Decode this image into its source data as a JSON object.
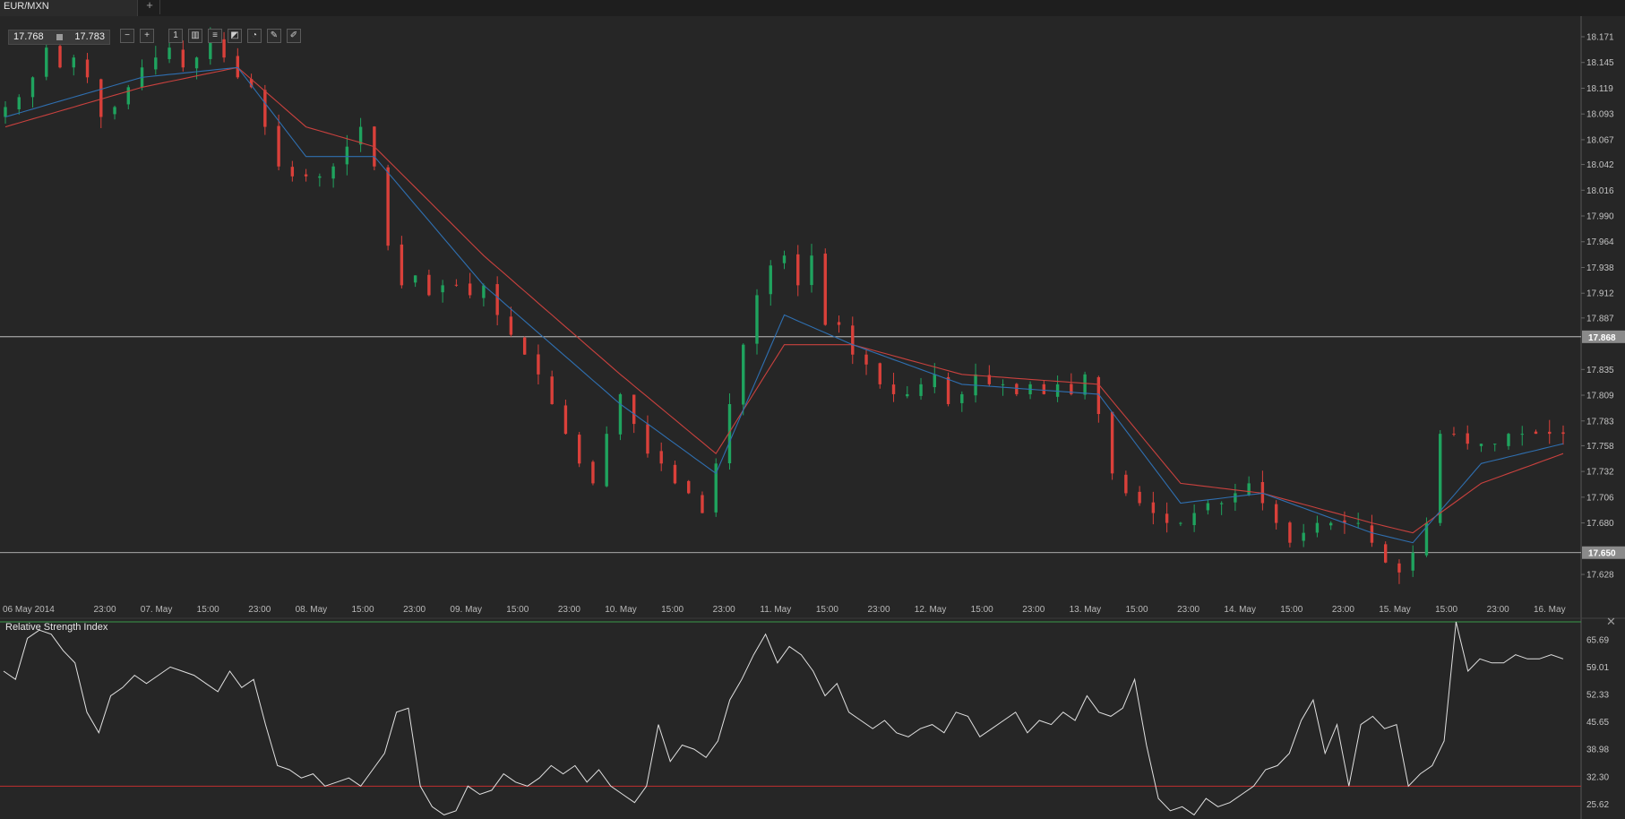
{
  "tab": {
    "title": "EUR/MXN",
    "add_label": "+"
  },
  "quote": {
    "bid": "17.768",
    "ask": "17.783"
  },
  "toolbar": {
    "buttons": [
      {
        "name": "zoom-out-icon",
        "glyph": "−"
      },
      {
        "name": "zoom-in-icon",
        "glyph": "+"
      },
      {
        "name": "timeframe-icon",
        "glyph": "1"
      },
      {
        "name": "chart-type-icon",
        "glyph": "▥"
      },
      {
        "name": "indicators-icon",
        "glyph": "≡"
      },
      {
        "name": "studies-icon",
        "glyph": "◩"
      },
      {
        "name": "objects-icon",
        "glyph": "◔"
      },
      {
        "name": "edit-icon",
        "glyph": "✎"
      },
      {
        "name": "draw-icon",
        "glyph": "✐"
      }
    ]
  },
  "rsi_panel": {
    "title": "Relative Strength Index",
    "close_label": "✕"
  },
  "colors": {
    "background": "#262626",
    "up": "#1fa35e",
    "down": "#d9403a",
    "ma_fast": "#2f6fb0",
    "ma_slow": "#c9413e",
    "rsi_line": "#e0e0e0",
    "rsi_upper": "#3a9a4a",
    "rsi_lower": "#c03030"
  },
  "chart_data": [
    {
      "type": "candlestick",
      "symbol": "EUR/MXN",
      "ylim": [
        17.6,
        18.19
      ],
      "y_ticks": [
        "18.171",
        "18.145",
        "18.119",
        "18.093",
        "18.067",
        "18.042",
        "18.016",
        "17.990",
        "17.964",
        "17.938",
        "17.912",
        "17.887",
        "17.835",
        "17.809",
        "17.783",
        "17.758",
        "17.732",
        "17.706",
        "17.680",
        "17.628"
      ],
      "x_labels": [
        "06 May 2014",
        "23:00",
        "07. May",
        "15:00",
        "23:00",
        "08. May",
        "15:00",
        "23:00",
        "09. May",
        "15:00",
        "23:00",
        "10. May",
        "15:00",
        "23:00",
        "11. May",
        "15:00",
        "23:00",
        "12. May",
        "15:00",
        "23:00",
        "13. May",
        "15:00",
        "23:00",
        "14. May",
        "15:00",
        "23:00",
        "15. May",
        "15:00",
        "23:00",
        "16. May"
      ],
      "horizontal_lines": [
        {
          "value": 17.868,
          "label": "17.868"
        },
        {
          "value": 17.65,
          "label": "17.650"
        }
      ],
      "close_path": [
        [
          0,
          18.1
        ],
        [
          1,
          18.11
        ],
        [
          2,
          18.13
        ],
        [
          3,
          18.16
        ],
        [
          4,
          18.14
        ],
        [
          5,
          18.15
        ],
        [
          6,
          18.13
        ],
        [
          7,
          18.09
        ],
        [
          8,
          18.1
        ],
        [
          9,
          18.12
        ],
        [
          10,
          18.14
        ],
        [
          11,
          18.15
        ],
        [
          12,
          18.16
        ],
        [
          13,
          18.14
        ],
        [
          14,
          18.15
        ],
        [
          15,
          18.17
        ],
        [
          16,
          18.15
        ],
        [
          17,
          18.13
        ],
        [
          18,
          18.12
        ],
        [
          19,
          18.08
        ],
        [
          20,
          18.04
        ],
        [
          21,
          18.03
        ],
        [
          22,
          18.03
        ],
        [
          23,
          18.03
        ],
        [
          24,
          18.04
        ],
        [
          25,
          18.06
        ],
        [
          26,
          18.08
        ],
        [
          27,
          18.04
        ],
        [
          28,
          17.96
        ],
        [
          29,
          17.92
        ],
        [
          30,
          17.93
        ],
        [
          31,
          17.91
        ],
        [
          32,
          17.92
        ],
        [
          33,
          17.92
        ],
        [
          34,
          17.91
        ],
        [
          35,
          17.92
        ],
        [
          36,
          17.89
        ],
        [
          37,
          17.87
        ],
        [
          38,
          17.85
        ],
        [
          39,
          17.83
        ],
        [
          40,
          17.8
        ],
        [
          41,
          17.77
        ],
        [
          42,
          17.74
        ],
        [
          43,
          17.72
        ],
        [
          44,
          17.77
        ],
        [
          45,
          17.81
        ],
        [
          46,
          17.78
        ],
        [
          47,
          17.75
        ],
        [
          48,
          17.74
        ],
        [
          49,
          17.72
        ],
        [
          50,
          17.71
        ],
        [
          51,
          17.69
        ],
        [
          52,
          17.74
        ],
        [
          53,
          17.8
        ],
        [
          54,
          17.86
        ],
        [
          55,
          17.91
        ],
        [
          56,
          17.94
        ],
        [
          57,
          17.95
        ],
        [
          58,
          17.92
        ],
        [
          59,
          17.95
        ],
        [
          60,
          17.88
        ],
        [
          61,
          17.88
        ],
        [
          62,
          17.85
        ],
        [
          63,
          17.84
        ],
        [
          64,
          17.82
        ],
        [
          65,
          17.81
        ],
        [
          66,
          17.81
        ],
        [
          67,
          17.82
        ],
        [
          68,
          17.83
        ],
        [
          69,
          17.8
        ],
        [
          70,
          17.81
        ],
        [
          71,
          17.83
        ],
        [
          72,
          17.82
        ],
        [
          73,
          17.82
        ],
        [
          74,
          17.81
        ],
        [
          75,
          17.82
        ],
        [
          76,
          17.81
        ],
        [
          77,
          17.82
        ],
        [
          78,
          17.81
        ],
        [
          79,
          17.83
        ],
        [
          80,
          17.79
        ],
        [
          81,
          17.73
        ],
        [
          82,
          17.71
        ],
        [
          83,
          17.7
        ],
        [
          84,
          17.69
        ],
        [
          85,
          17.68
        ],
        [
          86,
          17.68
        ],
        [
          87,
          17.69
        ],
        [
          88,
          17.7
        ],
        [
          89,
          17.7
        ],
        [
          90,
          17.71
        ],
        [
          91,
          17.72
        ],
        [
          92,
          17.7
        ],
        [
          93,
          17.68
        ],
        [
          94,
          17.66
        ],
        [
          95,
          17.67
        ],
        [
          96,
          17.68
        ],
        [
          97,
          17.68
        ],
        [
          98,
          17.68
        ],
        [
          99,
          17.68
        ],
        [
          100,
          17.66
        ],
        [
          101,
          17.64
        ],
        [
          102,
          17.63
        ],
        [
          103,
          17.65
        ],
        [
          104,
          17.68
        ],
        [
          105,
          17.77
        ],
        [
          106,
          17.77
        ],
        [
          107,
          17.76
        ],
        [
          108,
          17.76
        ],
        [
          109,
          17.76
        ],
        [
          110,
          17.77
        ],
        [
          111,
          17.77
        ],
        [
          112,
          17.77
        ],
        [
          113,
          17.77
        ],
        [
          114,
          17.77
        ]
      ],
      "ma_fast": [
        [
          0,
          18.09
        ],
        [
          10,
          18.13
        ],
        [
          17,
          18.14
        ],
        [
          22,
          18.05
        ],
        [
          27,
          18.05
        ],
        [
          35,
          17.92
        ],
        [
          45,
          17.8
        ],
        [
          52,
          17.73
        ],
        [
          57,
          17.89
        ],
        [
          62,
          17.86
        ],
        [
          70,
          17.82
        ],
        [
          80,
          17.81
        ],
        [
          86,
          17.7
        ],
        [
          92,
          17.71
        ],
        [
          100,
          17.67
        ],
        [
          103,
          17.66
        ],
        [
          108,
          17.74
        ],
        [
          114,
          17.76
        ]
      ],
      "ma_slow": [
        [
          0,
          18.08
        ],
        [
          10,
          18.12
        ],
        [
          17,
          18.14
        ],
        [
          22,
          18.08
        ],
        [
          27,
          18.06
        ],
        [
          35,
          17.95
        ],
        [
          45,
          17.83
        ],
        [
          52,
          17.75
        ],
        [
          57,
          17.86
        ],
        [
          62,
          17.86
        ],
        [
          70,
          17.83
        ],
        [
          80,
          17.82
        ],
        [
          86,
          17.72
        ],
        [
          92,
          17.71
        ],
        [
          100,
          17.68
        ],
        [
          103,
          17.67
        ],
        [
          108,
          17.72
        ],
        [
          114,
          17.75
        ]
      ]
    },
    {
      "type": "line",
      "title": "Relative Strength Index",
      "ylim": [
        22.0,
        70.0
      ],
      "y_ticks": [
        "65.69",
        "59.01",
        "52.33",
        "45.65",
        "38.98",
        "32.30",
        "25.62"
      ],
      "levels": [
        70,
        30
      ],
      "series": [
        {
          "values": [
            58,
            56,
            66,
            68,
            67,
            63,
            60,
            48,
            43,
            52,
            54,
            57,
            55,
            57,
            59,
            58,
            57,
            55,
            53,
            58,
            54,
            56,
            45,
            35,
            34,
            32,
            33,
            30,
            31,
            32,
            30,
            34,
            38,
            48,
            49,
            30,
            25,
            23,
            24,
            30,
            28,
            29,
            33,
            31,
            30,
            32,
            35,
            33,
            35,
            31,
            34,
            30,
            28,
            26,
            30,
            45,
            36,
            40,
            39,
            37,
            41,
            51,
            56,
            62,
            67,
            60,
            64,
            62,
            58,
            52,
            55,
            48,
            46,
            44,
            46,
            43,
            42,
            44,
            45,
            43,
            48,
            47,
            42,
            44,
            46,
            48,
            43,
            46,
            45,
            48,
            46,
            52,
            48,
            47,
            49,
            56,
            40,
            27,
            24,
            25,
            23,
            27,
            25,
            26,
            28,
            30,
            34,
            35,
            38,
            46,
            51,
            38,
            45,
            30,
            45,
            47,
            44,
            45,
            30,
            33,
            35,
            41,
            70,
            58,
            61,
            60,
            60,
            62,
            61,
            61,
            62,
            61
          ]
        }
      ]
    }
  ]
}
